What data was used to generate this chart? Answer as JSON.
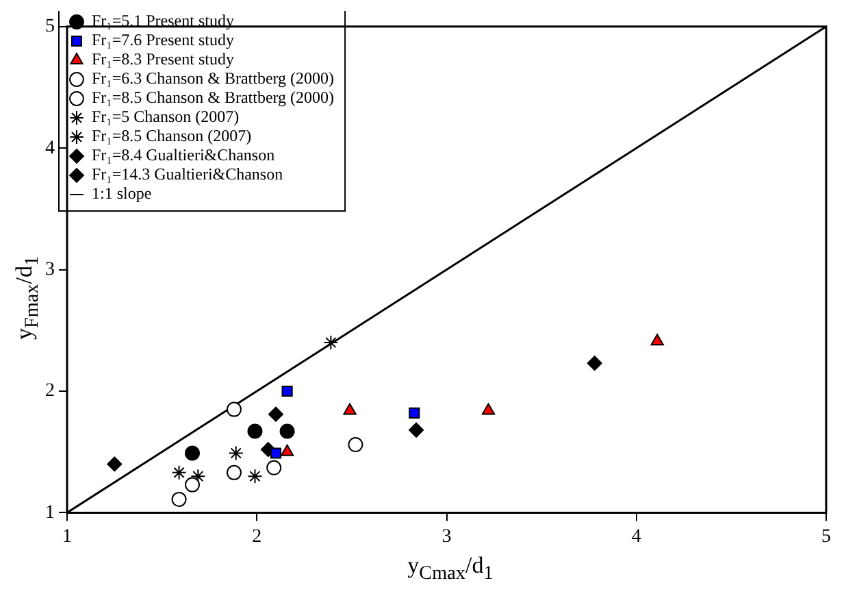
{
  "chart_data": {
    "type": "scatter",
    "xlabel": "y$_{Cmax}$/d$_{1}$",
    "ylabel": "y$_{Fmax}$/d$_{1}$",
    "xlim": [
      1,
      5
    ],
    "ylim": [
      1,
      5
    ],
    "xticks": [
      1,
      2,
      3,
      4,
      5
    ],
    "yticks": [
      1,
      2,
      3,
      4,
      5
    ],
    "grid": false,
    "legend": "top left",
    "series": [
      {
        "name": "Fr₁=5.1 Present study",
        "color": "#000000",
        "marker": "circle",
        "x": [
          1.66,
          1.99,
          2.16
        ],
        "values": [
          1.49,
          1.67,
          1.67
        ]
      },
      {
        "name": "Fr₁=7.6 Present study",
        "color": "#0000ff",
        "marker": "square",
        "x": [
          2.16,
          2.1,
          2.83
        ],
        "values": [
          2.0,
          1.49,
          1.82
        ]
      },
      {
        "name": "Fr₁=8.3 Present study",
        "color": "#ff0000",
        "marker": "triangle",
        "x": [
          2.16,
          2.49,
          3.22,
          4.11
        ],
        "values": [
          1.5,
          1.84,
          1.84,
          2.41
        ]
      },
      {
        "name": "Fr₁=6.3 Chanson & Brattberg (2000)",
        "color": "#ffffff",
        "marker": "circle",
        "x": [
          1.88,
          1.66,
          1.59
        ],
        "values": [
          1.85,
          1.23,
          1.11
        ]
      },
      {
        "name": "Fr₁=8.5 Chanson & Brattberg (2000)",
        "color": "#ffffff",
        "marker": "circle",
        "x": [
          1.88,
          2.09,
          2.52
        ],
        "values": [
          1.33,
          1.37,
          1.56
        ]
      },
      {
        "name": "Fr₁=5 Chanson (2007)",
        "color": "#000000",
        "marker": "cross",
        "x": [
          1.89,
          2.39
        ],
        "values": [
          1.49,
          2.4
        ]
      },
      {
        "name": "Fr₁=8.5 Chanson (2007)",
        "color": "#000000",
        "marker": "cross",
        "x": [
          1.59,
          1.69,
          1.99
        ],
        "values": [
          1.33,
          1.3,
          1.3
        ]
      },
      {
        "name": "Fr₁=8.4 Gualtieri&Chanson",
        "color": "#000000",
        "marker": "diamond",
        "x": [
          2.06,
          2.84
        ],
        "values": [
          1.52,
          1.68
        ]
      },
      {
        "name": "Fr₁=14.3 Gualtieri&Chanson",
        "color": "#000000",
        "marker": "diamond",
        "x": [
          1.25,
          2.1,
          3.78
        ],
        "values": [
          1.4,
          1.81,
          2.23
        ]
      },
      {
        "name": "1:1 slope",
        "type": "line",
        "color": "#000000",
        "marker": "none",
        "line_style": "solid",
        "x": [
          1,
          5
        ],
        "values": [
          1,
          5
        ]
      }
    ]
  }
}
